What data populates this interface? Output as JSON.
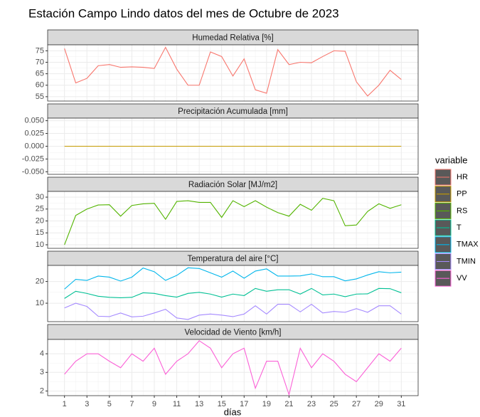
{
  "title": "Estación Campo Lindo datos del mes de Octubre de 2023",
  "xlabel": "días",
  "legend_title": "variable",
  "chart_data": [
    {
      "type": "line",
      "title": "Humedad Relativa [%]",
      "x": [
        1,
        2,
        3,
        4,
        5,
        6,
        7,
        8,
        9,
        10,
        11,
        12,
        13,
        14,
        15,
        16,
        17,
        18,
        19,
        20,
        21,
        22,
        23,
        24,
        25,
        26,
        27,
        28,
        29,
        30,
        31
      ],
      "xlim": [
        -0.5,
        32.5
      ],
      "xticks": [
        1,
        3,
        5,
        7,
        9,
        11,
        13,
        15,
        17,
        19,
        21,
        23,
        25,
        27,
        29,
        31
      ],
      "ylim": [
        53.1,
        77.6
      ],
      "yticks": [
        55,
        60,
        65,
        70,
        75
      ],
      "series": [
        {
          "name": "HR",
          "color": "#F8766D",
          "values": [
            76,
            61,
            63,
            68.5,
            69,
            67.8,
            68,
            67.8,
            67.3,
            76.5,
            67,
            60,
            60,
            74.5,
            72.5,
            64,
            71.5,
            58,
            56.5,
            75.5,
            69,
            70,
            69.8,
            72.5,
            75,
            74.8,
            61.5,
            55.3,
            60,
            66.5,
            62.5
          ]
        }
      ]
    },
    {
      "type": "line",
      "title": "Precipitación Acumulada [mm]",
      "x": [
        1,
        2,
        3,
        4,
        5,
        6,
        7,
        8,
        9,
        10,
        11,
        12,
        13,
        14,
        15,
        16,
        17,
        18,
        19,
        20,
        21,
        22,
        23,
        24,
        25,
        26,
        27,
        28,
        29,
        30,
        31
      ],
      "xlim": [
        -0.5,
        32.5
      ],
      "xticks": [
        1,
        3,
        5,
        7,
        9,
        11,
        13,
        15,
        17,
        19,
        21,
        23,
        25,
        27,
        29,
        31
      ],
      "ylim": [
        -0.055,
        0.055
      ],
      "yticks": [
        {
          "value": -0.05,
          "label": "-0.050"
        },
        {
          "value": -0.025,
          "label": "-0.025"
        },
        {
          "value": 0,
          "label": "0.000"
        },
        {
          "value": 0.025,
          "label": "0.025"
        },
        {
          "value": 0.05,
          "label": "0.050"
        }
      ],
      "series": [
        {
          "name": "PP",
          "color": "#C49A00",
          "values": [
            0,
            0,
            0,
            0,
            0,
            0,
            0,
            0,
            0,
            0,
            0,
            0,
            0,
            0,
            0,
            0,
            0,
            0,
            0,
            0,
            0,
            0,
            0,
            0,
            0,
            0,
            0,
            0,
            0,
            0,
            0
          ]
        }
      ]
    },
    {
      "type": "line",
      "title": "Radiación Solar [MJ/m2]",
      "x": [
        1,
        2,
        3,
        4,
        5,
        6,
        7,
        8,
        9,
        10,
        11,
        12,
        13,
        14,
        15,
        16,
        17,
        18,
        19,
        20,
        21,
        22,
        23,
        24,
        25,
        26,
        27,
        28,
        29,
        30,
        31
      ],
      "xlim": [
        -0.5,
        32.5
      ],
      "xticks": [
        1,
        3,
        5,
        7,
        9,
        11,
        13,
        15,
        17,
        19,
        21,
        23,
        25,
        27,
        29,
        31
      ],
      "ylim": [
        8.5,
        32.4
      ],
      "yticks": [
        10,
        15,
        20,
        25,
        30
      ],
      "series": [
        {
          "name": "RS",
          "color": "#53B400",
          "values": [
            10,
            22.3,
            25,
            26.7,
            26.8,
            22,
            26.5,
            27.2,
            27.4,
            20.7,
            28.2,
            28.5,
            27.8,
            27.8,
            21.5,
            28.5,
            26,
            28.5,
            25.8,
            23.5,
            22,
            27,
            24.5,
            29.5,
            28.5,
            18,
            18.3,
            24,
            27.2,
            25.3,
            26.8
          ]
        }
      ]
    },
    {
      "type": "line",
      "title": "Temperatura del aire [°C]",
      "x": [
        1,
        2,
        3,
        4,
        5,
        6,
        7,
        8,
        9,
        10,
        11,
        12,
        13,
        14,
        15,
        16,
        17,
        18,
        19,
        20,
        21,
        22,
        23,
        24,
        25,
        26,
        27,
        28,
        29,
        30,
        31
      ],
      "xlim": [
        -0.5,
        32.5
      ],
      "xticks": [
        1,
        3,
        5,
        7,
        9,
        11,
        13,
        15,
        17,
        19,
        21,
        23,
        25,
        27,
        29,
        31
      ],
      "ylim": [
        1.5,
        27.4
      ],
      "yticks": [
        10,
        20
      ],
      "series": [
        {
          "name": "T",
          "color": "#00C094",
          "values": [
            12.2,
            15.5,
            14.5,
            13.2,
            12.7,
            12.5,
            12.7,
            14.8,
            14.5,
            13.5,
            12.8,
            14.5,
            15,
            14.2,
            12.8,
            14.2,
            13.5,
            16.8,
            15.5,
            16.2,
            16.2,
            14.2,
            16.8,
            13.8,
            14.2,
            13,
            14.2,
            14.3,
            16.8,
            16.7,
            14.8
          ]
        },
        {
          "name": "TMAX",
          "color": "#00B6EB",
          "values": [
            16.5,
            21,
            20.5,
            22.5,
            22,
            20.2,
            22,
            26.2,
            24.5,
            20.5,
            22.8,
            26.3,
            26,
            24,
            22,
            24.8,
            21.5,
            24.8,
            25.8,
            22.5,
            22.5,
            22.6,
            23.5,
            22.2,
            22.2,
            20.3,
            21.2,
            23,
            24.5,
            24,
            24.3
          ]
        },
        {
          "name": "TMIN",
          "color": "#A58AFF",
          "values": [
            7.8,
            10,
            8.5,
            4,
            3.8,
            5.5,
            3.7,
            4,
            5.5,
            7.2,
            3.2,
            2.5,
            4.5,
            5,
            4.5,
            3.8,
            5,
            8.8,
            5,
            9.5,
            9.5,
            6,
            9.5,
            5.5,
            6.2,
            5.8,
            7.5,
            5.8,
            8.8,
            8.8,
            5
          ]
        }
      ]
    },
    {
      "type": "line",
      "title": "Velocidad de Viento [km/h]",
      "x": [
        1,
        2,
        3,
        4,
        5,
        6,
        7,
        8,
        9,
        10,
        11,
        12,
        13,
        14,
        15,
        16,
        17,
        18,
        19,
        20,
        21,
        22,
        23,
        24,
        25,
        26,
        27,
        28,
        29,
        30,
        31
      ],
      "xlim": [
        -0.5,
        32.5
      ],
      "xticks": [
        1,
        3,
        5,
        7,
        9,
        11,
        13,
        15,
        17,
        19,
        21,
        23,
        25,
        27,
        29,
        31
      ],
      "ylim": [
        1.75,
        4.77
      ],
      "yticks": [
        2,
        3,
        4
      ],
      "series": [
        {
          "name": "VV",
          "color": "#FB61D7",
          "values": [
            2.9,
            3.6,
            4,
            4,
            3.6,
            3.25,
            4,
            3.6,
            4.3,
            2.9,
            3.6,
            4,
            4.7,
            4.3,
            3.25,
            4,
            4.3,
            2.15,
            3.6,
            3.6,
            1.8,
            4.3,
            3.25,
            4,
            3.6,
            2.9,
            2.5,
            3.25,
            4,
            3.6,
            4.3
          ]
        }
      ]
    }
  ]
}
